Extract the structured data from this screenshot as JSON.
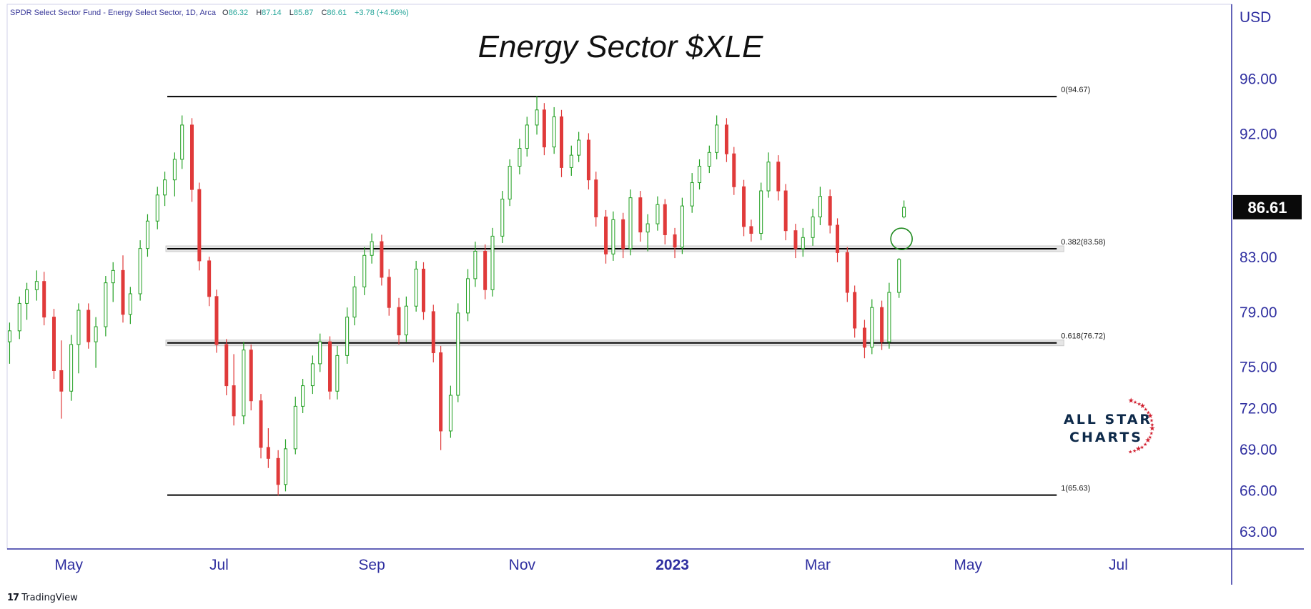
{
  "header": {
    "symbol": "SPDR Select Sector Fund - Energy Select Sector, 1D, Arca",
    "open_label": "O",
    "open": "86.32",
    "high_label": "H",
    "high": "87.14",
    "low_label": "L",
    "low": "85.87",
    "close_label": "C",
    "close": "86.61",
    "change": "+3.78 (+4.56%)"
  },
  "branding": {
    "tradingview": "TradingView",
    "logo_line1": "ALL STAR",
    "logo_line2": "CHARTS"
  },
  "chart_data": {
    "type": "candlestick",
    "title": "Energy Sector $XLE",
    "y_axis": {
      "unit": "USD",
      "range": [
        61.7,
        101.4
      ],
      "ticks": [
        "96.00",
        "92.00",
        "83.00",
        "79.00",
        "75.00",
        "72.00",
        "69.00",
        "66.00",
        "63.00"
      ],
      "tick_values": [
        96,
        92,
        83,
        79,
        75,
        72,
        69,
        66,
        63
      ]
    },
    "x_axis": {
      "tick_labels": [
        "May",
        "Jul",
        "Sep",
        "Nov",
        "2023",
        "Mar",
        "May",
        "Jul"
      ],
      "tick_dates": [
        "2022-05-01",
        "2022-07-01",
        "2022-09-01",
        "2022-11-01",
        "2023-01-01",
        "2023-03-01",
        "2023-05-01",
        "2023-07-01"
      ],
      "range": [
        "2022-04-06",
        "2023-08-16"
      ]
    },
    "last_price": "86.61",
    "fibonacci_levels": [
      {
        "label": "0(94.67)",
        "value": 94.67,
        "from": "2022-06-10",
        "to": "2023-06-06"
      },
      {
        "label": "0.382(83.58)",
        "value": 83.58,
        "from": "2022-06-10",
        "to": "2023-06-06"
      },
      {
        "label": "0.618(76.72)",
        "value": 76.72,
        "from": "2022-06-10",
        "to": "2023-06-06"
      },
      {
        "label": "1(65.63)",
        "value": 65.63,
        "from": "2022-06-10",
        "to": "2023-06-06"
      }
    ],
    "annotation_circle": {
      "date": "2023-04-04",
      "value": 84.3
    },
    "grid": false,
    "colors": {
      "up": "#22a022",
      "down": "#e03a3a",
      "axis": "#2f2fa0",
      "level": "#000000",
      "band": "#c8c8c8",
      "circle": "#1f8a1f"
    },
    "candles": [
      [
        "2022-04-07",
        76.8,
        78.2,
        75.2,
        77.6
      ],
      [
        "2022-04-11",
        77.6,
        80.1,
        77.0,
        79.6
      ],
      [
        "2022-04-14",
        79.6,
        81.1,
        78.4,
        80.6
      ],
      [
        "2022-04-18",
        80.6,
        82.0,
        79.8,
        81.2
      ],
      [
        "2022-04-21",
        81.2,
        81.9,
        78.0,
        78.6
      ],
      [
        "2022-04-25",
        78.6,
        79.2,
        74.1,
        74.7
      ],
      [
        "2022-04-28",
        74.7,
        76.9,
        71.2,
        73.2
      ],
      [
        "2022-05-02",
        73.2,
        77.3,
        72.5,
        76.6
      ],
      [
        "2022-05-05",
        76.6,
        79.6,
        74.5,
        79.1
      ],
      [
        "2022-05-09",
        79.1,
        79.6,
        76.3,
        76.8
      ],
      [
        "2022-05-12",
        76.8,
        78.6,
        74.9,
        77.9
      ],
      [
        "2022-05-16",
        77.9,
        81.6,
        77.2,
        81.1
      ],
      [
        "2022-05-19",
        81.1,
        82.6,
        79.7,
        82.0
      ],
      [
        "2022-05-23",
        82.0,
        83.1,
        78.2,
        78.8
      ],
      [
        "2022-05-26",
        78.8,
        80.8,
        78.1,
        80.3
      ],
      [
        "2022-05-30",
        80.3,
        84.2,
        79.8,
        83.6
      ],
      [
        "2022-06-02",
        83.6,
        86.1,
        83.0,
        85.6
      ],
      [
        "2022-06-06",
        85.6,
        88.1,
        85.0,
        87.5
      ],
      [
        "2022-06-09",
        87.5,
        89.2,
        86.7,
        88.6
      ],
      [
        "2022-06-13",
        88.6,
        90.6,
        87.4,
        90.1
      ],
      [
        "2022-06-16",
        90.1,
        93.3,
        89.4,
        92.6
      ],
      [
        "2022-06-20",
        92.6,
        93.1,
        87.0,
        87.9
      ],
      [
        "2022-06-23",
        87.9,
        88.4,
        82.0,
        82.7
      ],
      [
        "2022-06-27",
        82.7,
        83.0,
        79.4,
        80.1
      ],
      [
        "2022-06-30",
        80.1,
        80.6,
        76.0,
        76.6
      ],
      [
        "2022-07-04",
        76.6,
        77.0,
        72.9,
        73.6
      ],
      [
        "2022-07-07",
        73.6,
        75.9,
        70.7,
        71.4
      ],
      [
        "2022-07-11",
        71.4,
        76.8,
        70.8,
        76.2
      ],
      [
        "2022-07-14",
        76.2,
        76.6,
        71.8,
        72.5
      ],
      [
        "2022-07-18",
        72.5,
        73.0,
        68.3,
        69.1
      ],
      [
        "2022-07-21",
        69.1,
        70.5,
        67.6,
        68.3
      ],
      [
        "2022-07-25",
        68.3,
        68.9,
        65.6,
        66.4
      ],
      [
        "2022-07-28",
        66.4,
        69.7,
        65.9,
        69.0
      ],
      [
        "2022-08-01",
        69.0,
        72.8,
        68.6,
        72.1
      ],
      [
        "2022-08-04",
        72.1,
        74.1,
        71.6,
        73.6
      ],
      [
        "2022-08-08",
        73.6,
        75.8,
        73.0,
        75.2
      ],
      [
        "2022-08-11",
        75.2,
        77.4,
        74.6,
        76.8
      ],
      [
        "2022-08-15",
        76.8,
        77.2,
        72.6,
        73.2
      ],
      [
        "2022-08-18",
        73.2,
        76.5,
        72.6,
        75.8
      ],
      [
        "2022-08-22",
        75.8,
        79.3,
        75.2,
        78.6
      ],
      [
        "2022-08-25",
        78.6,
        81.6,
        78.0,
        80.8
      ],
      [
        "2022-08-29",
        80.8,
        83.7,
        80.2,
        83.1
      ],
      [
        "2022-09-01",
        83.1,
        84.7,
        82.5,
        84.1
      ],
      [
        "2022-09-05",
        84.1,
        84.6,
        80.9,
        81.5
      ],
      [
        "2022-09-08",
        81.5,
        82.1,
        78.7,
        79.3
      ],
      [
        "2022-09-12",
        79.3,
        80.0,
        76.6,
        77.3
      ],
      [
        "2022-09-15",
        77.3,
        80.1,
        76.8,
        79.4
      ],
      [
        "2022-09-19",
        79.4,
        82.7,
        79.0,
        82.1
      ],
      [
        "2022-09-22",
        82.1,
        82.6,
        78.4,
        79.0
      ],
      [
        "2022-09-26",
        79.0,
        79.5,
        75.3,
        76.0
      ],
      [
        "2022-09-29",
        76.0,
        76.5,
        68.9,
        70.3
      ],
      [
        "2022-10-03",
        70.3,
        73.6,
        69.8,
        72.9
      ],
      [
        "2022-10-06",
        72.9,
        79.6,
        72.4,
        78.9
      ],
      [
        "2022-10-10",
        78.9,
        82.1,
        78.3,
        81.4
      ],
      [
        "2022-10-13",
        81.4,
        84.1,
        80.8,
        83.4
      ],
      [
        "2022-10-17",
        83.4,
        83.9,
        79.9,
        80.6
      ],
      [
        "2022-10-20",
        80.6,
        85.1,
        80.1,
        84.5
      ],
      [
        "2022-10-24",
        84.5,
        87.8,
        84.0,
        87.2
      ],
      [
        "2022-10-27",
        87.2,
        90.1,
        86.7,
        89.6
      ],
      [
        "2022-10-31",
        89.6,
        91.6,
        89.0,
        90.9
      ],
      [
        "2022-11-03",
        90.9,
        93.2,
        90.3,
        92.6
      ],
      [
        "2022-11-07",
        92.6,
        94.7,
        91.9,
        93.7
      ],
      [
        "2022-11-10",
        93.7,
        94.2,
        90.4,
        91.0
      ],
      [
        "2022-11-14",
        91.0,
        93.9,
        90.5,
        93.2
      ],
      [
        "2022-11-17",
        93.2,
        93.7,
        88.8,
        89.5
      ],
      [
        "2022-11-21",
        89.5,
        91.1,
        88.9,
        90.4
      ],
      [
        "2022-11-24",
        90.4,
        92.1,
        89.9,
        91.5
      ],
      [
        "2022-11-28",
        91.5,
        92.0,
        87.9,
        88.6
      ],
      [
        "2022-12-01",
        88.6,
        89.2,
        85.2,
        85.9
      ],
      [
        "2022-12-05",
        85.9,
        86.4,
        82.5,
        83.2
      ],
      [
        "2022-12-08",
        83.2,
        86.3,
        82.7,
        85.7
      ],
      [
        "2022-12-12",
        85.7,
        86.2,
        82.9,
        83.6
      ],
      [
        "2022-12-15",
        83.6,
        87.9,
        83.1,
        87.3
      ],
      [
        "2022-12-19",
        87.3,
        87.8,
        84.1,
        84.8
      ],
      [
        "2022-12-22",
        84.8,
        86.1,
        83.4,
        85.4
      ],
      [
        "2022-12-26",
        85.4,
        87.4,
        84.9,
        86.8
      ],
      [
        "2022-12-29",
        86.8,
        87.2,
        83.9,
        84.6
      ],
      [
        "2023-01-02",
        84.6,
        85.1,
        82.9,
        83.7
      ],
      [
        "2023-01-05",
        83.7,
        87.3,
        83.2,
        86.7
      ],
      [
        "2023-01-09",
        86.7,
        89.1,
        86.2,
        88.4
      ],
      [
        "2023-01-12",
        88.4,
        90.1,
        87.9,
        89.6
      ],
      [
        "2023-01-16",
        89.6,
        91.1,
        89.1,
        90.6
      ],
      [
        "2023-01-19",
        90.6,
        93.3,
        90.1,
        92.6
      ],
      [
        "2023-01-23",
        92.6,
        93.1,
        89.9,
        90.5
      ],
      [
        "2023-01-26",
        90.5,
        91.0,
        87.5,
        88.1
      ],
      [
        "2023-01-30",
        88.1,
        88.6,
        84.5,
        85.2
      ],
      [
        "2023-02-02",
        85.2,
        85.7,
        84.1,
        84.7
      ],
      [
        "2023-02-06",
        84.7,
        88.4,
        84.2,
        87.8
      ],
      [
        "2023-02-09",
        87.8,
        90.6,
        87.3,
        89.9
      ],
      [
        "2023-02-13",
        89.9,
        90.4,
        87.1,
        87.8
      ],
      [
        "2023-02-16",
        87.8,
        88.3,
        84.2,
        84.9
      ],
      [
        "2023-02-20",
        84.9,
        85.4,
        82.9,
        83.6
      ],
      [
        "2023-02-23",
        83.6,
        85.1,
        83.0,
        84.4
      ],
      [
        "2023-02-27",
        84.4,
        86.5,
        83.8,
        85.9
      ],
      [
        "2023-03-02",
        85.9,
        88.1,
        85.3,
        87.4
      ],
      [
        "2023-03-06",
        87.4,
        87.9,
        84.7,
        85.3
      ],
      [
        "2023-03-09",
        85.3,
        85.8,
        82.6,
        83.3
      ],
      [
        "2023-03-13",
        83.3,
        83.7,
        79.7,
        80.4
      ],
      [
        "2023-03-16",
        80.4,
        80.9,
        77.1,
        77.8
      ],
      [
        "2023-03-20",
        77.8,
        78.4,
        75.6,
        76.4
      ],
      [
        "2023-03-23",
        76.4,
        79.9,
        75.9,
        79.3
      ],
      [
        "2023-03-27",
        79.3,
        79.8,
        76.2,
        76.8
      ],
      [
        "2023-03-30",
        76.8,
        81.1,
        76.3,
        80.4
      ],
      [
        "2023-04-03",
        80.4,
        82.9,
        80.0,
        82.8
      ],
      [
        "2023-04-05",
        85.9,
        87.1,
        85.8,
        86.6
      ]
    ]
  }
}
